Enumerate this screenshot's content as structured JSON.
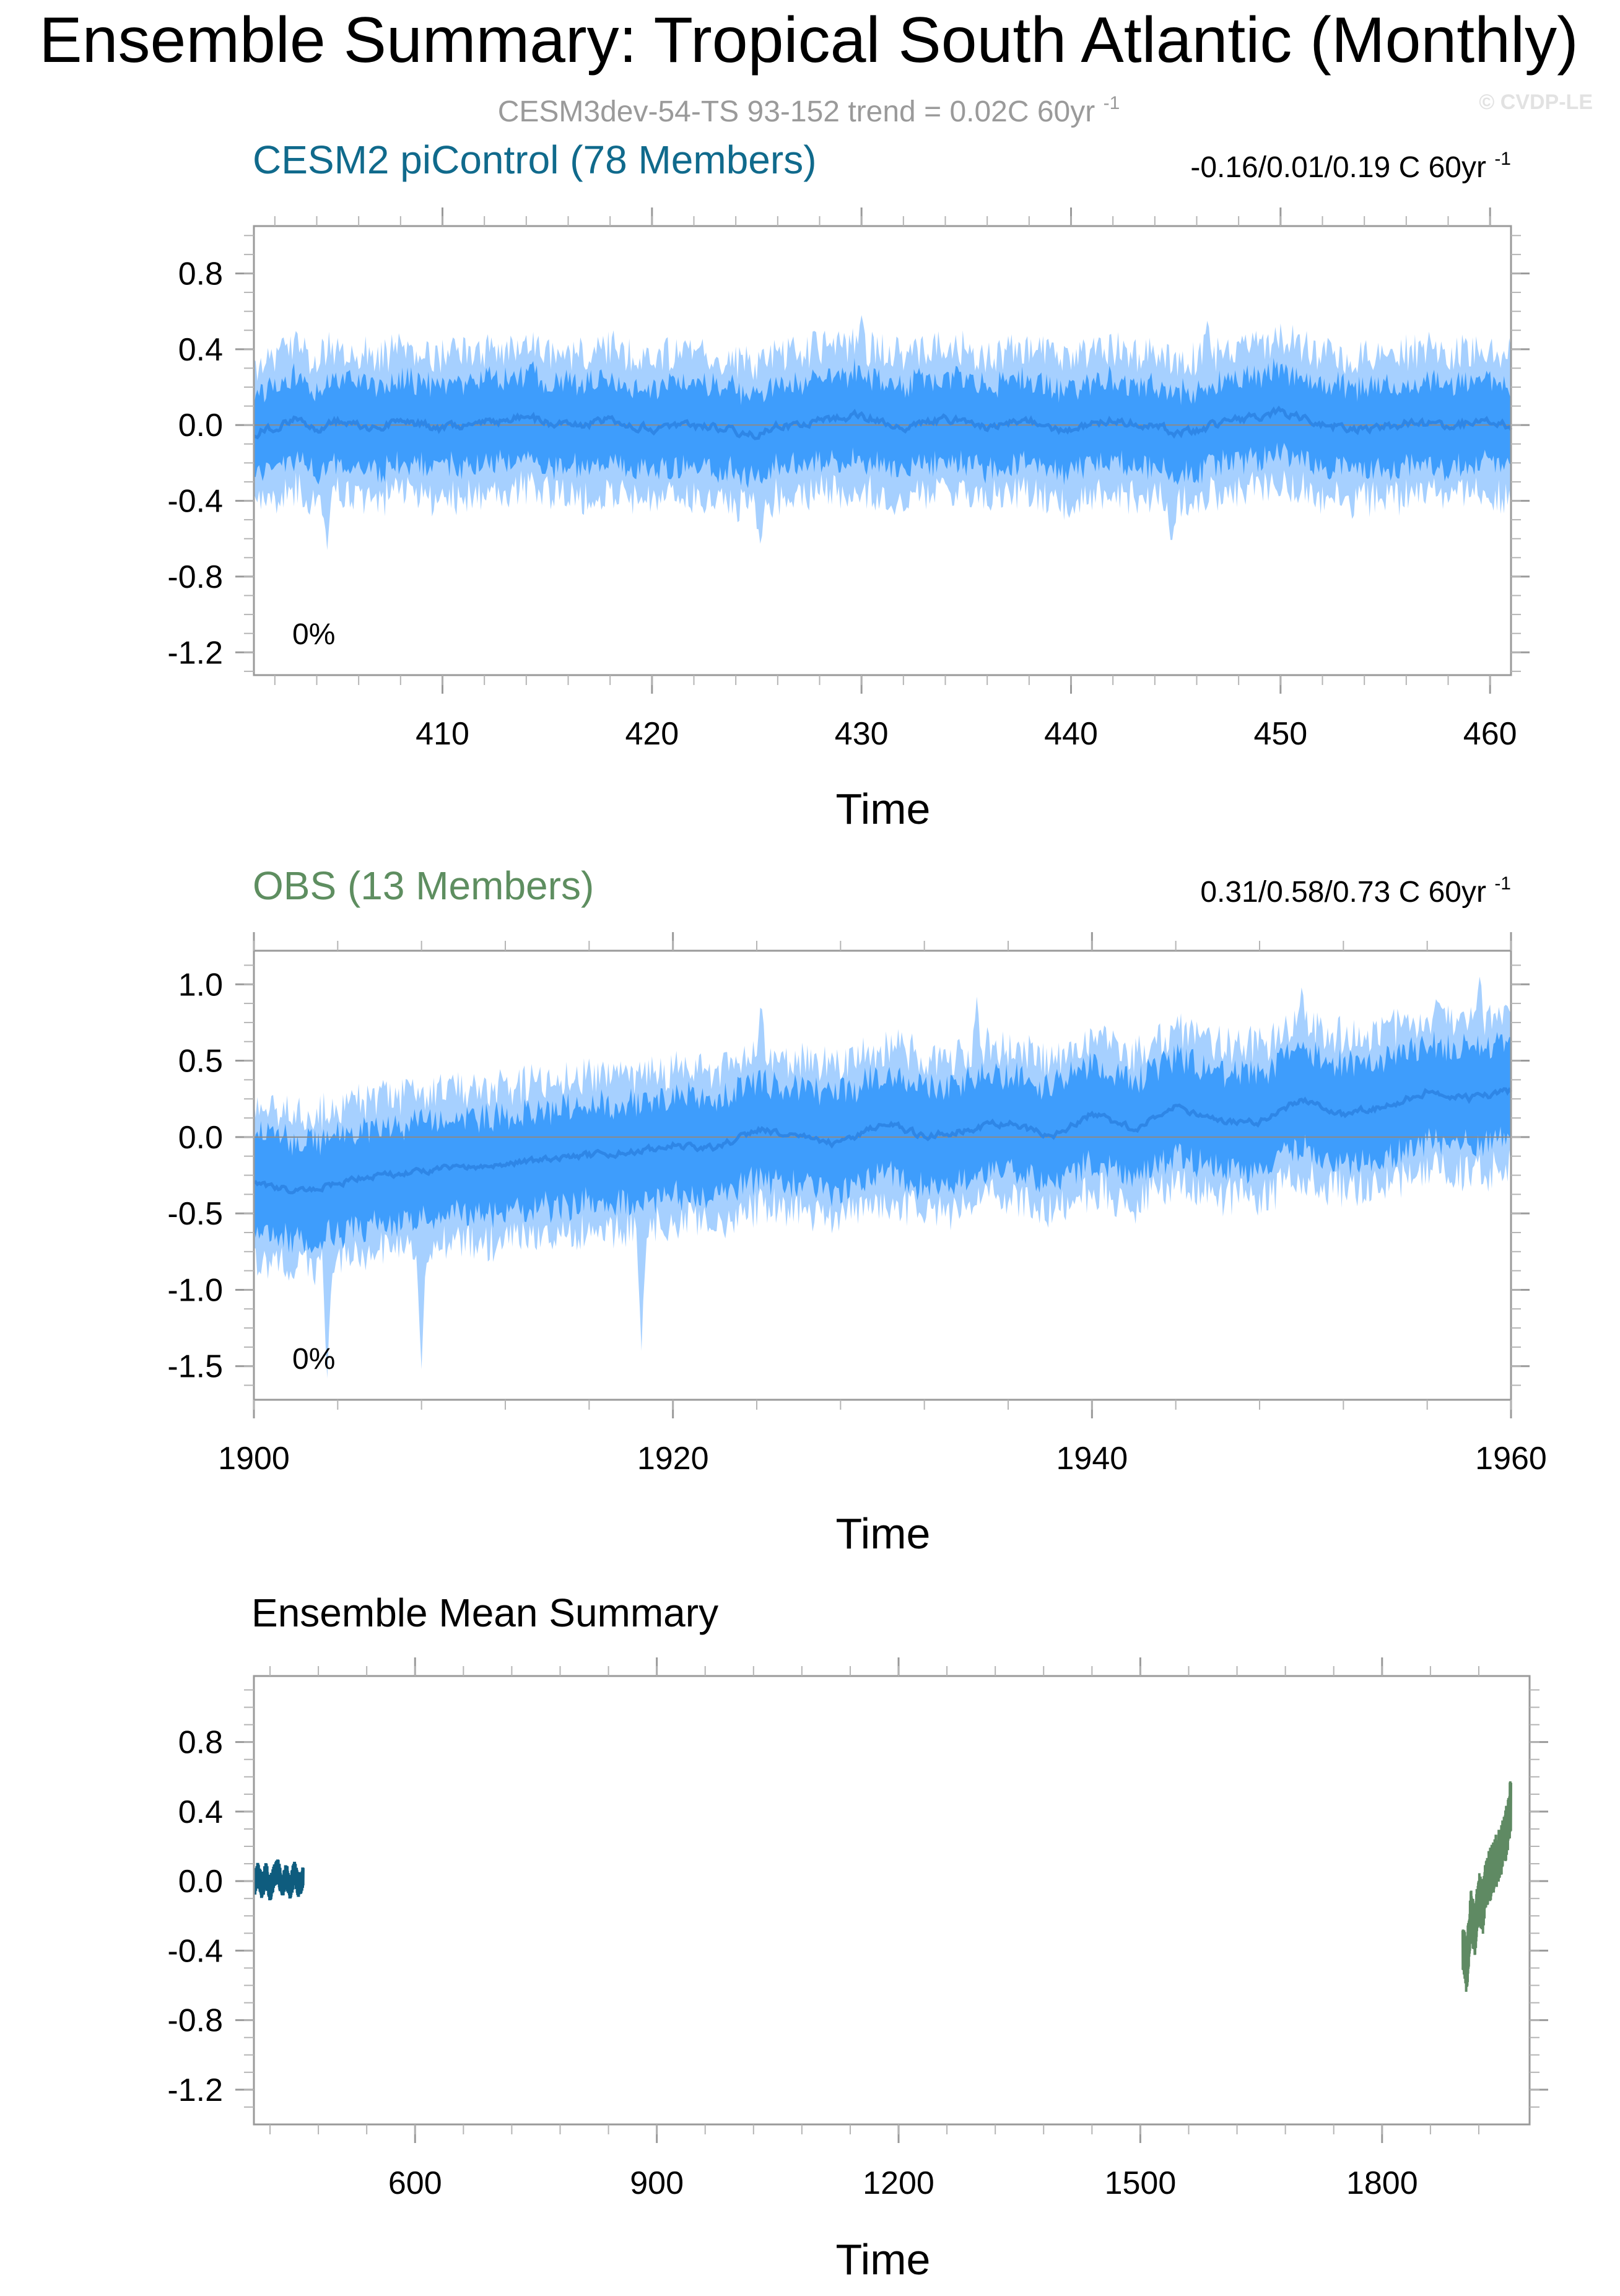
{
  "page": {
    "title": "Ensemble Summary: Tropical South Atlantic (Monthly)",
    "subtitle": "CESM3dev-54-TS 93-152 trend = 0.02C 60yr",
    "subtitle_sup": "-1",
    "watermark": "© CVDP-LE"
  },
  "colors": {
    "band_outer": "#a6d0ff",
    "band_inner": "#3e9dfc",
    "mean_line": "#2e86e6",
    "cesm_title": "#106a8c",
    "obs_title": "#5e8e60",
    "cesm_mean": "#0e5c7e",
    "obs_mean": "#5f8a63",
    "subtitle": "#9a9a9a"
  },
  "chart_data": [
    {
      "type": "area",
      "id": "cesm",
      "title": "CESM2 piControl (78 Members)",
      "trend_label": "-0.16/0.01/0.19 C 60yr",
      "trend_sup": "-1",
      "annotation": "0%",
      "xlabel": "Time",
      "ylabel": "",
      "xlim": [
        401,
        461
      ],
      "ylim": [
        -1.32,
        1.05
      ],
      "xticks": [
        410,
        420,
        430,
        440,
        450,
        460
      ],
      "yticks": [
        0.8,
        0.4,
        0.0,
        -0.4,
        -0.8,
        -1.2
      ],
      "ytick_labels": [
        "0.8",
        "0.4",
        "0.0",
        "-0.4",
        "-0.8",
        "-1.2"
      ],
      "zero_line": true,
      "series": [
        {
          "name": "",
          "role": "ensemble mean",
          "x": [
            401,
            402,
            403,
            404,
            405,
            406,
            407,
            408,
            409,
            410,
            412,
            414,
            416,
            418,
            420,
            422,
            424,
            425,
            426,
            428,
            430,
            432,
            434,
            436,
            438,
            440,
            442,
            444,
            445,
            446,
            448,
            450,
            452,
            454,
            456,
            458,
            460,
            461
          ],
          "y": [
            -0.04,
            -0.02,
            0.04,
            -0.03,
            0.02,
            0.0,
            -0.02,
            0.03,
            0.0,
            -0.02,
            0.01,
            0.04,
            -0.01,
            0.03,
            -0.02,
            0.0,
            -0.03,
            -0.06,
            -0.01,
            0.02,
            0.05,
            -0.02,
            0.03,
            -0.01,
            0.02,
            -0.03,
            0.03,
            0.0,
            -0.05,
            -0.02,
            0.03,
            0.07,
            0.0,
            -0.02,
            0.01,
            0.0,
            0.02,
            -0.01
          ]
        },
        {
          "name": "",
          "role": "ensemble spread 10-90%",
          "half_width": 0.22
        },
        {
          "name": "",
          "role": "ensemble spread min-max",
          "half_width": 0.38,
          "extremes": [
            [
              404.5,
              -0.66
            ],
            [
              425.2,
              -0.65
            ],
            [
              444.8,
              -0.64
            ],
            [
              430.0,
              0.58
            ],
            [
              446.5,
              0.55
            ]
          ]
        }
      ]
    },
    {
      "type": "area",
      "id": "obs",
      "title": "OBS (13 Members)",
      "trend_label": "0.31/0.58/0.73 C 60yr",
      "trend_sup": "-1",
      "annotation": "0%",
      "xlabel": "Time",
      "ylabel": "",
      "xlim": [
        1900,
        1960
      ],
      "ylim": [
        -1.72,
        1.22
      ],
      "xticks": [
        1900,
        1920,
        1940,
        1960
      ],
      "yticks": [
        1.0,
        0.5,
        0.0,
        -0.5,
        -1.0,
        -1.5
      ],
      "ytick_labels": [
        "1.0",
        "0.5",
        "0.0",
        "-0.5",
        "-1.0",
        "-1.5"
      ],
      "zero_line": true,
      "series": [
        {
          "name": "",
          "role": "ensemble mean",
          "x": [
            1900,
            1902,
            1904,
            1906,
            1908,
            1910,
            1912,
            1914,
            1916,
            1918,
            1920,
            1922,
            1924,
            1926,
            1928,
            1930,
            1932,
            1934,
            1936,
            1938,
            1940,
            1942,
            1944,
            1946,
            1948,
            1950,
            1952,
            1954,
            1956,
            1958,
            1960
          ],
          "y": [
            -0.3,
            -0.35,
            -0.3,
            -0.25,
            -0.22,
            -0.2,
            -0.18,
            -0.15,
            -0.12,
            -0.1,
            -0.05,
            -0.08,
            0.05,
            0.0,
            -0.05,
            0.1,
            0.0,
            0.05,
            0.1,
            0.0,
            0.15,
            0.05,
            0.2,
            0.1,
            0.1,
            0.25,
            0.15,
            0.2,
            0.3,
            0.25,
            0.3
          ]
        },
        {
          "name": "",
          "role": "ensemble spread 10-90%",
          "half_width": 0.32
        },
        {
          "name": "",
          "role": "ensemble spread min-max",
          "half_width": 0.5,
          "extremes": [
            [
              1903.5,
              -1.58
            ],
            [
              1908.0,
              -1.52
            ],
            [
              1918.5,
              -1.4
            ],
            [
              1924.2,
              0.9
            ],
            [
              1934.5,
              0.92
            ],
            [
              1950.0,
              0.98
            ],
            [
              1958.5,
              1.05
            ]
          ]
        }
      ]
    },
    {
      "type": "line",
      "id": "summary",
      "title": "Ensemble Mean Summary",
      "annotation": "",
      "xlabel": "Time",
      "ylabel": "",
      "xlim": [
        400,
        1960
      ],
      "ylim": [
        -1.4,
        1.18
      ],
      "xticks": [
        600,
        900,
        1200,
        1500,
        1800
      ],
      "yticks": [
        0.8,
        0.4,
        0.0,
        -0.4,
        -0.8,
        -1.2
      ],
      "ytick_labels": [
        "0.8",
        "0.4",
        "0.0",
        "-0.4",
        "-0.8",
        "-1.2"
      ],
      "zero_line": false,
      "series": [
        {
          "name": "",
          "color": "#0e5c7e",
          "x": [
            401,
            405,
            410,
            415,
            420,
            425,
            430,
            435,
            440,
            445,
            450,
            455,
            461
          ],
          "y": [
            -0.02,
            0.05,
            -0.04,
            0.04,
            -0.05,
            0.03,
            0.06,
            -0.04,
            0.04,
            -0.06,
            0.06,
            -0.03,
            0.02
          ]
        },
        {
          "name": "",
          "color": "#5f8a63",
          "x": [
            1900,
            1905,
            1910,
            1915,
            1920,
            1925,
            1930,
            1935,
            1940,
            1945,
            1950,
            1955,
            1960
          ],
          "y": [
            -0.38,
            -0.5,
            -0.2,
            -0.3,
            -0.1,
            -0.15,
            0.0,
            0.05,
            0.1,
            0.15,
            0.2,
            0.3,
            0.45
          ]
        }
      ]
    }
  ]
}
